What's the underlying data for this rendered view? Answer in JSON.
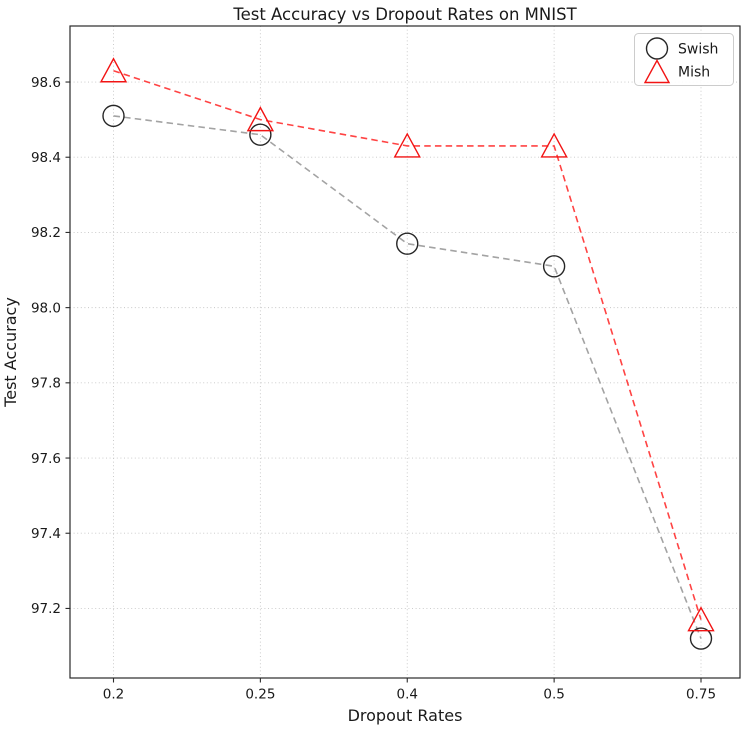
{
  "figure": {
    "background": "#ffffff",
    "spine_color": "#2a2a2a",
    "grid_color": "#c6c6c6",
    "grid_style": "dotted"
  },
  "chart_data": {
    "type": "line",
    "title": "Test Accuracy vs Dropout Rates on MNIST",
    "xlabel": "Dropout Rates",
    "ylabel": "Test Accuracy",
    "categories": [
      "0.2",
      "0.25",
      "0.4",
      "0.5",
      "0.75"
    ],
    "series": [
      {
        "name": "Swish",
        "marker": "circle",
        "marker_color": "#262626",
        "line_color": "#a3a3a3",
        "line_style": "dashed",
        "values": [
          98.51,
          98.46,
          98.17,
          98.11,
          97.12
        ]
      },
      {
        "name": "Mish",
        "marker": "triangle-up",
        "marker_color": "#f21414",
        "line_color": "#ff4343",
        "line_style": "dashed",
        "values": [
          98.63,
          98.5,
          98.43,
          98.43,
          97.17
        ]
      }
    ],
    "y_ticks": [
      97.2,
      97.4,
      97.6,
      97.8,
      98.0,
      98.2,
      98.4,
      98.6
    ],
    "y_tick_labels": [
      "97.2",
      "97.4",
      "97.6",
      "97.8",
      "98.0",
      "98.2",
      "98.4",
      "98.6"
    ],
    "ylim": [
      97.015,
      98.749
    ],
    "grid": true,
    "legend": {
      "position": "upper right",
      "entries": [
        "Swish",
        "Mish"
      ]
    }
  }
}
